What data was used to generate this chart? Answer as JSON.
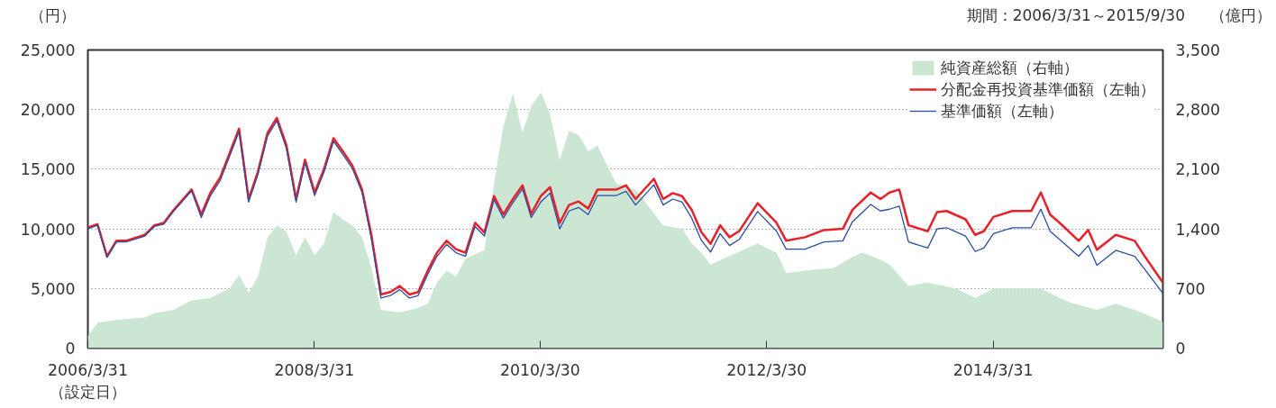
{
  "chart_data": {
    "type": "line",
    "annotations": [
      "期間：2006/3/31～2015/9/30"
    ],
    "ylabel": "（円）",
    "y2label": "（億円）",
    "x": [
      "2006-03-31",
      "2006-05",
      "2006-06",
      "2006-07",
      "2006-08",
      "2006-10",
      "2006-11",
      "2006-12",
      "2007-01",
      "2007-03",
      "2007-04",
      "2007-05",
      "2007-06",
      "2007-07",
      "2007-08",
      "2007-09",
      "2007-10",
      "2007-11",
      "2007-12",
      "2008-01",
      "2008-02",
      "2008-03",
      "2008-04",
      "2008-05",
      "2008-06",
      "2008-07",
      "2008-08",
      "2008-09",
      "2008-10",
      "2008-11",
      "2008-12",
      "2009-01",
      "2009-02",
      "2009-03",
      "2009-04",
      "2009-05",
      "2009-06",
      "2009-07",
      "2009-08",
      "2009-09",
      "2009-10",
      "2009-11",
      "2009-12",
      "2010-01",
      "2010-02",
      "2010-03",
      "2010-04",
      "2010-05",
      "2010-06",
      "2010-07",
      "2010-08",
      "2010-09",
      "2010-10",
      "2010-12",
      "2011-01",
      "2011-02",
      "2011-04",
      "2011-05",
      "2011-06",
      "2011-07",
      "2011-08",
      "2011-09",
      "2011-10",
      "2011-11",
      "2011-12",
      "2012-01",
      "2012-03",
      "2012-05",
      "2012-06",
      "2012-08",
      "2012-10",
      "2012-12",
      "2013-01",
      "2013-03",
      "2013-04",
      "2013-05",
      "2013-06",
      "2013-07",
      "2013-09",
      "2013-10",
      "2013-11",
      "2014-01",
      "2014-02",
      "2014-03",
      "2014-04",
      "2014-06",
      "2014-08",
      "2014-09",
      "2014-10",
      "2014-11",
      "2015-01",
      "2015-02",
      "2015-03",
      "2015-05",
      "2015-07",
      "2015-08",
      "2015-09-30"
    ],
    "series": [
      {
        "name": "純資産総額（右軸）",
        "type": "area",
        "axis": "y2",
        "color": "#cce6d4",
        "x": [
          "2006-03-31",
          "2006-05",
          "2006-07",
          "2006-10",
          "2006-11",
          "2007-01",
          "2007-03",
          "2007-05",
          "2007-07",
          "2007-08",
          "2007-09",
          "2007-10",
          "2007-11",
          "2007-12",
          "2008-01",
          "2008-02",
          "2008-03",
          "2008-04",
          "2008-05",
          "2008-06",
          "2008-07",
          "2008-08",
          "2008-09",
          "2008-10",
          "2008-11",
          "2009-01",
          "2009-03",
          "2009-04",
          "2009-05",
          "2009-06",
          "2009-07",
          "2009-08",
          "2009-10",
          "2009-11",
          "2009-12",
          "2010-01",
          "2010-02",
          "2010-03",
          "2010-04",
          "2010-05",
          "2010-06",
          "2010-07",
          "2010-08",
          "2010-09",
          "2010-10",
          "2010-11",
          "2010-12",
          "2011-02",
          "2011-04",
          "2011-05",
          "2011-07",
          "2011-08",
          "2011-09",
          "2011-10",
          "2011-12",
          "2012-03",
          "2012-05",
          "2012-06",
          "2012-08",
          "2012-11",
          "2013-01",
          "2013-02",
          "2013-04",
          "2013-05",
          "2013-07",
          "2013-09",
          "2013-12",
          "2014-02",
          "2014-04",
          "2014-09",
          "2014-11",
          "2014-12",
          "2015-03",
          "2015-05",
          "2015-07",
          "2015-09-30"
        ],
        "values": [
          140,
          300,
          330,
          360,
          410,
          450,
          560,
          590,
          700,
          860,
          650,
          840,
          1300,
          1440,
          1370,
          1090,
          1300,
          1090,
          1230,
          1600,
          1510,
          1440,
          1300,
          940,
          450,
          420,
          470,
          520,
          770,
          910,
          840,
          1050,
          1150,
          1930,
          2600,
          2990,
          2530,
          2840,
          3000,
          2750,
          2210,
          2550,
          2500,
          2310,
          2380,
          2140,
          1930,
          1860,
          1580,
          1440,
          1400,
          1230,
          1120,
          980,
          1080,
          1230,
          1120,
          880,
          910,
          940,
          1070,
          1120,
          1040,
          980,
          730,
          770,
          700,
          590,
          700,
          700,
          590,
          540,
          450,
          520,
          450,
          310
        ]
      },
      {
        "name": "分配金再投資基準価額（左軸）",
        "color": "#e8202a",
        "values": [
          10100,
          10400,
          7700,
          9000,
          9000,
          9500,
          10300,
          10500,
          11550,
          13300,
          11200,
          13050,
          14300,
          16300,
          18400,
          12500,
          14800,
          18050,
          19300,
          17000,
          12500,
          15800,
          13050,
          15000,
          17600,
          16500,
          15300,
          13300,
          9500,
          4500,
          4700,
          5200,
          4500,
          4700,
          6500,
          8000,
          9000,
          8300,
          8000,
          10500,
          9700,
          12750,
          11200,
          12500,
          13650,
          11250,
          12750,
          13500,
          10500,
          12000,
          12300,
          11700,
          13300,
          13300,
          13650,
          12500,
          14200,
          12500,
          13000,
          12750,
          11600,
          9750,
          8750,
          10300,
          9300,
          9800,
          12150,
          10500,
          9000,
          9300,
          9900,
          10000,
          11600,
          13050,
          12500,
          13050,
          13300,
          10300,
          9800,
          11400,
          11500,
          10800,
          9500,
          9800,
          11000,
          11500,
          11500,
          13050,
          11200,
          10500,
          9000,
          9900,
          8250,
          9500,
          9000,
          7750,
          5500
        ]
      },
      {
        "name": "基準価額（左軸）",
        "color": "#2b4ea2",
        "values": [
          10000,
          10300,
          7600,
          8900,
          8900,
          9400,
          10200,
          10400,
          11450,
          13200,
          10950,
          12800,
          14050,
          16050,
          18150,
          12250,
          14550,
          17800,
          19050,
          16750,
          12250,
          15550,
          12800,
          14750,
          17350,
          16250,
          15050,
          13050,
          9200,
          4200,
          4400,
          4900,
          4200,
          4400,
          6200,
          7700,
          8700,
          8000,
          7700,
          10200,
          9400,
          12450,
          10900,
          12200,
          13350,
          10950,
          12250,
          13000,
          10000,
          11500,
          11800,
          11200,
          12800,
          12800,
          13150,
          12000,
          13700,
          12000,
          12500,
          12250,
          10900,
          9050,
          8050,
          9600,
          8600,
          9100,
          11450,
          9800,
          8300,
          8300,
          8900,
          9000,
          10600,
          12050,
          11500,
          11650,
          11900,
          8900,
          8400,
          10000,
          10100,
          9400,
          8100,
          8400,
          9600,
          10100,
          10100,
          11650,
          9800,
          9100,
          7700,
          8600,
          6950,
          8200,
          7700,
          6650,
          4600
        ]
      }
    ],
    "xlim": [
      "2006-03-31",
      "2015-09-30"
    ],
    "xticks": [
      {
        "value": "2006-03-31",
        "label": "2006/3/31\n（設定日）"
      },
      {
        "value": "2008-03-31",
        "label": "2008/3/31"
      },
      {
        "value": "2010-03-30",
        "label": "2010/3/30"
      },
      {
        "value": "2012-03-30",
        "label": "2012/3/30"
      },
      {
        "value": "2014-03-31",
        "label": "2014/3/31"
      }
    ],
    "ylim": [
      0,
      25000
    ],
    "yticks": [
      {
        "value": 0,
        "label": "0"
      },
      {
        "value": 5000,
        "label": "5,000"
      },
      {
        "value": 10000,
        "label": "10,000"
      },
      {
        "value": 15000,
        "label": "15,000"
      },
      {
        "value": 20000,
        "label": "20,000"
      },
      {
        "value": 25000,
        "label": "25,000"
      }
    ],
    "y2lim": [
      0,
      3500
    ],
    "y2ticks": [
      {
        "value": 0,
        "label": "0"
      },
      {
        "value": 700,
        "label": "700"
      },
      {
        "value": 1400,
        "label": "1,400"
      },
      {
        "value": 2100,
        "label": "2,100"
      },
      {
        "value": 2800,
        "label": "2,800"
      },
      {
        "value": 3500,
        "label": "3,500"
      }
    ],
    "grid": "y",
    "legend": "top right"
  }
}
